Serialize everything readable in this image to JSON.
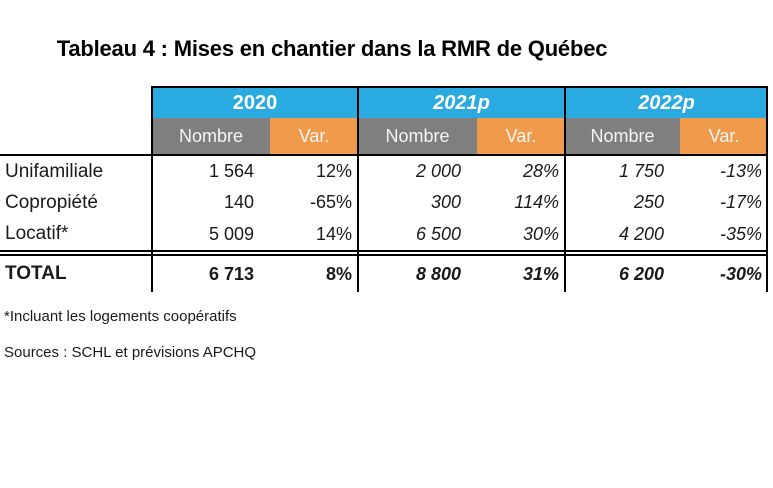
{
  "title": "Tableau 4 : Mises en chantier dans la RMR de Québec",
  "colors": {
    "header_blue": "#29ABE2",
    "header_gray": "#7F7F7F",
    "header_orange": "#F09A4C"
  },
  "table": {
    "years": [
      "2020",
      "2021p",
      "2022p"
    ],
    "subheaders": {
      "nombre": "Nombre",
      "var": "Var."
    },
    "rows": [
      {
        "label": "Unifamiliale",
        "values": [
          "1 564",
          "12%",
          "2 000",
          "28%",
          "1 750",
          "-13%"
        ]
      },
      {
        "label": "Copropiété",
        "values": [
          "140",
          "-65%",
          "300",
          "114%",
          "250",
          "-17%"
        ]
      },
      {
        "label": "Locatif*",
        "values": [
          "5 009",
          "14%",
          "6 500",
          "30%",
          "4 200",
          "-35%"
        ]
      }
    ],
    "total": {
      "label": "TOTAL",
      "values": [
        "6 713",
        "8%",
        "8 800",
        "31%",
        "6 200",
        "-30%"
      ]
    }
  },
  "footnotes": {
    "note": "*Incluant les logements coopératifs",
    "sources": "Sources : SCHL et prévisions APCHQ"
  }
}
